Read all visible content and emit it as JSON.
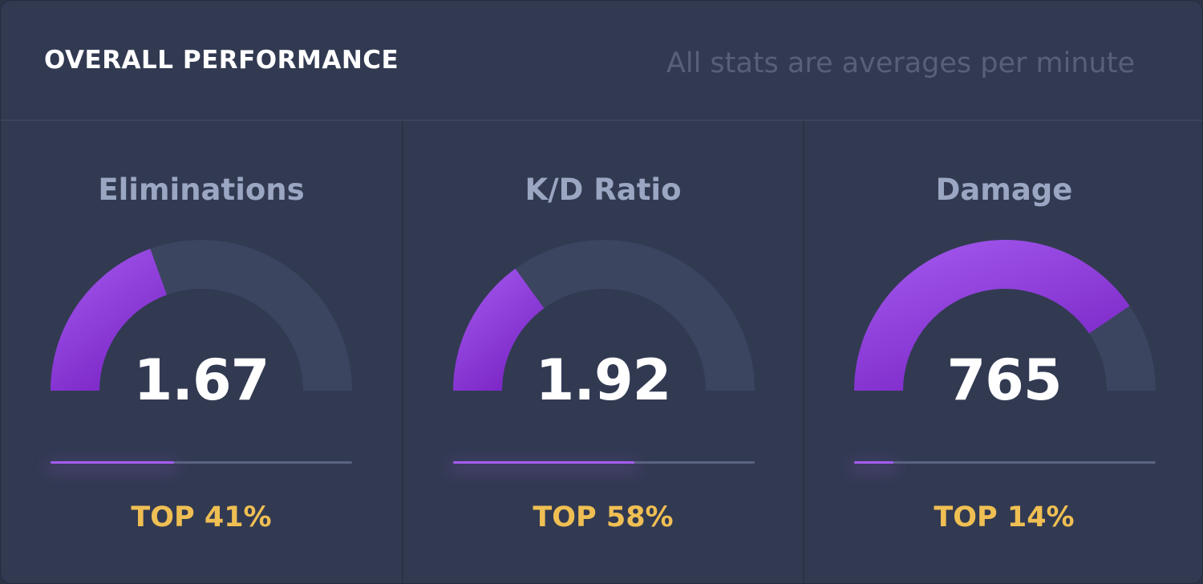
{
  "header": {
    "title": "OVERALL PERFORMANCE",
    "subtitle": "All stats are averages per minute"
  },
  "colors": {
    "accent": "#a55cf0",
    "accent_dark": "#7b26c6",
    "track": "#3b4560",
    "rank": "#f0bf53"
  },
  "stats": [
    {
      "label": "Eliminations",
      "value": "1.67",
      "gauge_fraction": 0.39,
      "bar_fraction": 0.41,
      "rank": "TOP 41%"
    },
    {
      "label": "K/D Ratio",
      "value": "1.92",
      "gauge_fraction": 0.3,
      "bar_fraction": 0.6,
      "rank": "TOP 58%"
    },
    {
      "label": "Damage",
      "value": "765",
      "gauge_fraction": 0.81,
      "bar_fraction": 0.13,
      "rank": "TOP 14%"
    }
  ]
}
